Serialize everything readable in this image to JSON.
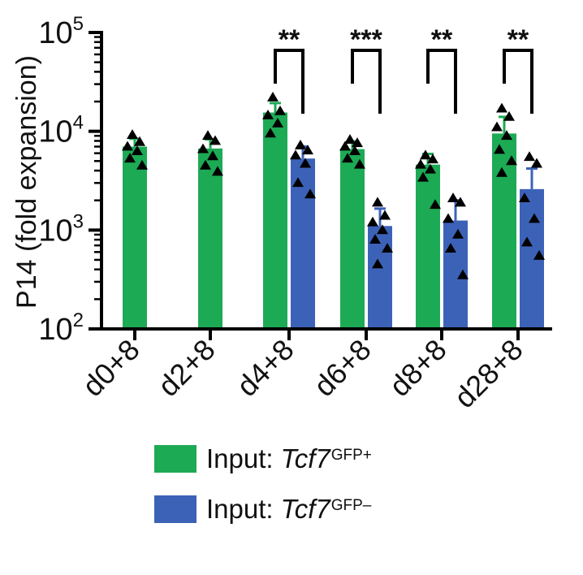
{
  "chart_data": {
    "type": "bar",
    "title": "",
    "xlabel": "",
    "ylabel": "P14 (fold expansion)",
    "yscale": "log",
    "ylim": [
      100,
      100000
    ],
    "y_ticks": [
      {
        "value": 100,
        "base": "10",
        "exp": "2"
      },
      {
        "value": 1000,
        "base": "10",
        "exp": "3"
      },
      {
        "value": 10000,
        "base": "10",
        "exp": "4"
      },
      {
        "value": 100000,
        "base": "10",
        "exp": "5"
      }
    ],
    "categories": [
      "d0+8",
      "d2+8",
      "d4+8",
      "d6+8",
      "d8+8",
      "d28+8"
    ],
    "series": [
      {
        "color": "#1daa55",
        "values": [
          7000,
          6700,
          15500,
          6600,
          4600,
          9500
        ],
        "error": [
          1400,
          1600,
          3800,
          1300,
          1300,
          4500
        ],
        "points": [
          [
            9200,
            7800,
            7000,
            6300,
            5300,
            4500
          ],
          [
            9000,
            8000,
            6600,
            5600,
            4500,
            3900
          ],
          [
            22000,
            16000,
            14500,
            12000,
            9500
          ],
          [
            8200,
            7600,
            7000,
            6300,
            5300,
            4600
          ],
          [
            5700,
            5200,
            4600,
            4100,
            3400,
            1800
          ],
          [
            17000,
            14000,
            11000,
            9000,
            6500,
            5000,
            3800
          ]
        ]
      },
      {
        "color": "#3c62b8",
        "values": [
          null,
          null,
          5300,
          1100,
          1250,
          2600
        ],
        "error": [
          null,
          null,
          1700,
          550,
          750,
          1600
        ],
        "points": [
          [],
          [],
          [
            7200,
            6400,
            5700,
            4700,
            3000,
            2300
          ],
          [
            1900,
            1400,
            1200,
            1000,
            800,
            650,
            450
          ],
          [
            2100,
            1900,
            1300,
            900,
            650,
            350
          ],
          [
            5500,
            4700,
            2100,
            1300,
            750,
            550
          ]
        ]
      }
    ],
    "significance": [
      {
        "category": "d4+8",
        "label": "**"
      },
      {
        "category": "d6+8",
        "label": "***"
      },
      {
        "category": "d8+8",
        "label": "**"
      },
      {
        "category": "d28+8",
        "label": "**"
      }
    ],
    "legend": {
      "placement": "bottom",
      "entries": [
        {
          "prefix": "Input:",
          "gene": "Tcf7",
          "sup": "GFP+",
          "color": "#1daa55"
        },
        {
          "prefix": "Input:",
          "gene": "Tcf7",
          "sup": "GFP–",
          "color": "#3c62b8"
        }
      ]
    }
  }
}
